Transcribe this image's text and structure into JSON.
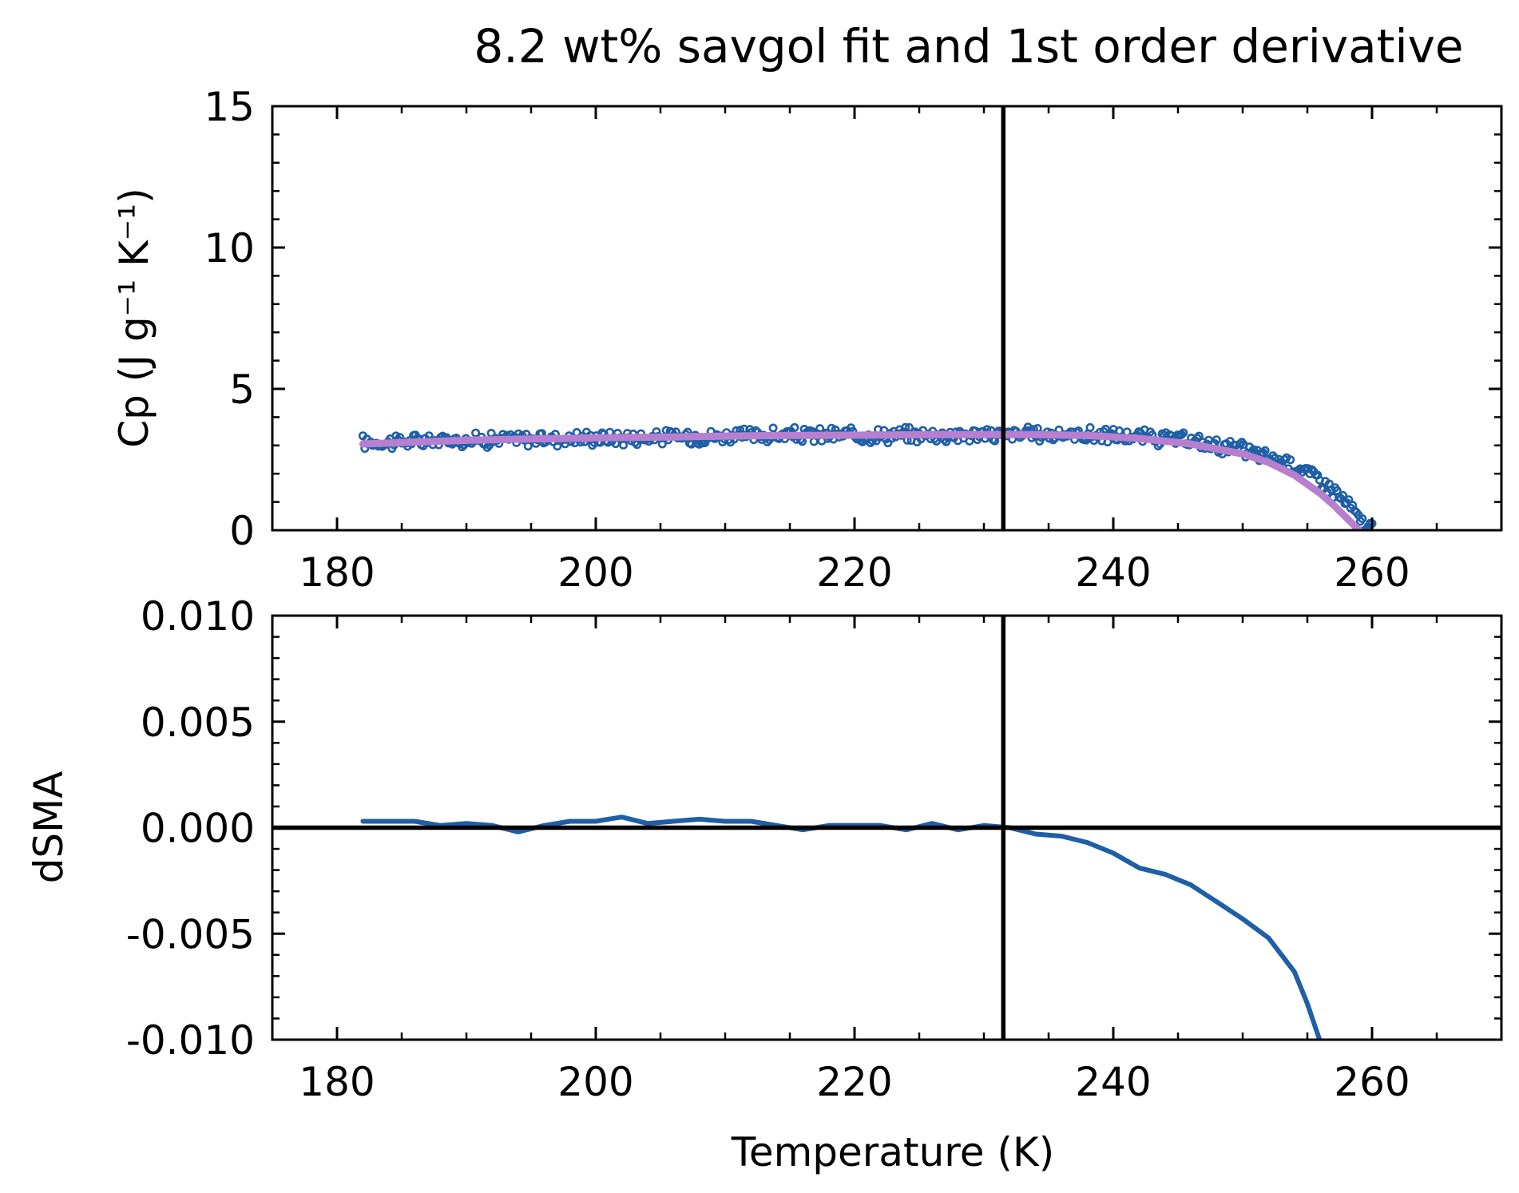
{
  "chart_data": {
    "title": "8.2 wt% savgol fit and 1st order derivative",
    "colors": {
      "data": "#1f5fa6",
      "fit": "#b77fd0",
      "line": "#000000"
    },
    "panels": [
      {
        "id": "cp",
        "type": "scatter+line",
        "ylabel": "Cp (J g⁻¹ K⁻¹)",
        "xlim": [
          175,
          270
        ],
        "ylim": [
          0,
          15
        ],
        "xticks": [
          "180",
          "200",
          "220",
          "240",
          "260"
        ],
        "yticks": [
          "0",
          "5",
          "10",
          "15"
        ],
        "vline_x": 231.5,
        "series": [
          {
            "kind": "scatter",
            "x_range": [
              182,
              260
            ],
            "points": [
              [
                182,
                3.1
              ],
              [
                186,
                3.15
              ],
              [
                190,
                3.2
              ],
              [
                194,
                3.22
              ],
              [
                198,
                3.25
              ],
              [
                202,
                3.28
              ],
              [
                206,
                3.3
              ],
              [
                210,
                3.33
              ],
              [
                214,
                3.35
              ],
              [
                218,
                3.36
              ],
              [
                222,
                3.37
              ],
              [
                226,
                3.38
              ],
              [
                230,
                3.38
              ],
              [
                234,
                3.39
              ],
              [
                238,
                3.38
              ],
              [
                242,
                3.3
              ],
              [
                246,
                3.15
              ],
              [
                250,
                2.85
              ],
              [
                254,
                2.3
              ],
              [
                256,
                1.8
              ],
              [
                258,
                1.0
              ],
              [
                259.5,
                0.1
              ]
            ]
          },
          {
            "kind": "line",
            "x": [
              182,
              186,
              190,
              194,
              198,
              202,
              206,
              210,
              214,
              218,
              222,
              226,
              230,
              234,
              238,
              242,
              246,
              250,
              252,
              254,
              256,
              257,
              258,
              259
            ],
            "y": [
              3.05,
              3.12,
              3.18,
              3.22,
              3.25,
              3.28,
              3.3,
              3.33,
              3.35,
              3.36,
              3.37,
              3.38,
              3.38,
              3.38,
              3.35,
              3.25,
              3.05,
              2.7,
              2.4,
              1.95,
              1.3,
              0.9,
              0.45,
              0.0
            ]
          }
        ]
      },
      {
        "id": "dsma",
        "type": "line",
        "xlabel": "Temperature (K)",
        "ylabel": "dSMA",
        "xlim": [
          175,
          270
        ],
        "ylim": [
          -0.01,
          0.01
        ],
        "xticks": [
          "180",
          "200",
          "220",
          "240",
          "260"
        ],
        "yticks": [
          "-0.010",
          "-0.005",
          "0.000",
          "0.005",
          "0.010"
        ],
        "vline_x": 231.5,
        "hline_y": 0,
        "series": [
          {
            "kind": "line",
            "x": [
              182,
              184,
              186,
              188,
              190,
              192,
              194,
              196,
              198,
              200,
              202,
              204,
              206,
              208,
              210,
              212,
              214,
              216,
              218,
              220,
              222,
              224,
              226,
              228,
              230,
              232,
              234,
              236,
              238,
              240,
              242,
              244,
              246,
              248,
              250,
              252,
              254,
              255,
              256
            ],
            "y": [
              0.0003,
              0.0003,
              0.0003,
              0.0001,
              0.0002,
              0.0001,
              -0.0002,
              0.0001,
              0.0003,
              0.0003,
              0.0005,
              0.0002,
              0.0003,
              0.0004,
              0.0003,
              0.0003,
              0.0001,
              -0.0001,
              0.0001,
              0.0001,
              0.0001,
              -0.0001,
              0.0002,
              -0.0001,
              0.0001,
              0.0,
              -0.0003,
              -0.0004,
              -0.0007,
              -0.0012,
              -0.0019,
              -0.0022,
              -0.0027,
              -0.0035,
              -0.0043,
              -0.0052,
              -0.0068,
              -0.0083,
              -0.0101
            ]
          }
        ]
      }
    ]
  }
}
